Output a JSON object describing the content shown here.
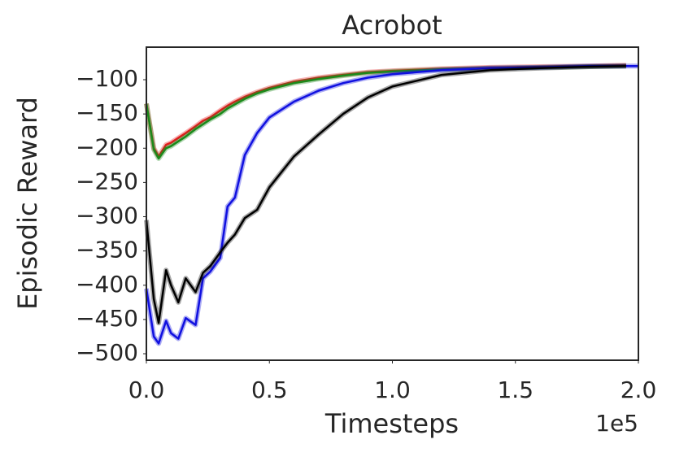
{
  "chart_data": {
    "type": "line",
    "title": "Acrobot",
    "x_label": "Timesteps",
    "y_label": "Episodic Reward",
    "x_offset_label": "1e5",
    "x": [
      0,
      0.03,
      0.05,
      0.08,
      0.1,
      0.13,
      0.16,
      0.2,
      0.23,
      0.26,
      0.3,
      0.33,
      0.36,
      0.4,
      0.45,
      0.5,
      0.6,
      0.7,
      0.8,
      0.9,
      1.0,
      1.2,
      1.4,
      1.6,
      1.8,
      1.95,
      2.0
    ],
    "series": [
      {
        "color": "#e41a1c",
        "values": [
          -135,
          -200,
          -212,
          -195,
          -192,
          -185,
          -178,
          -168,
          -160,
          -155,
          -145,
          -138,
          -132,
          -125,
          -118,
          -112,
          -103,
          -97,
          -93,
          -89,
          -87,
          -84,
          -82,
          -81,
          -80,
          -79,
          null
        ]
      },
      {
        "color": "#1a8a1a",
        "values": [
          -135,
          -202,
          -215,
          -200,
          -197,
          -190,
          -183,
          -172,
          -165,
          -158,
          -150,
          -142,
          -136,
          -128,
          -120,
          -114,
          -105,
          -99,
          -94,
          -90,
          -88,
          -85,
          -83,
          -82,
          -81,
          -80,
          null
        ]
      },
      {
        "color": "#1010e0",
        "values": [
          -405,
          -475,
          -485,
          -452,
          -470,
          -478,
          -448,
          -458,
          -390,
          -380,
          -360,
          -285,
          -272,
          -210,
          -178,
          -155,
          -132,
          -116,
          -105,
          -97,
          -92,
          -86,
          -83,
          -82,
          -80,
          -80,
          -80
        ]
      },
      {
        "color": "#000000",
        "values": [
          -305,
          -420,
          -455,
          -378,
          -400,
          -425,
          -390,
          -410,
          -382,
          -372,
          -352,
          -338,
          -326,
          -302,
          -290,
          -257,
          -212,
          -180,
          -150,
          -126,
          -110,
          -93,
          -86,
          -83,
          -81,
          -80,
          null
        ]
      }
    ],
    "xlim": [
      0,
      2.0
    ],
    "xticks": [
      {
        "value": 0,
        "label": "0.0"
      },
      {
        "value": 0.5,
        "label": "0.5"
      },
      {
        "value": 1.0,
        "label": "1.0"
      },
      {
        "value": 1.5,
        "label": "1.5"
      },
      {
        "value": 2.0,
        "label": "2.0"
      }
    ],
    "ylim": [
      -509.5,
      -52.5
    ],
    "yticks": [
      {
        "value": -500,
        "label": "−500"
      },
      {
        "value": -450,
        "label": "−450"
      },
      {
        "value": -400,
        "label": "−400"
      },
      {
        "value": -350,
        "label": "−350"
      },
      {
        "value": -300,
        "label": "−300"
      },
      {
        "value": -250,
        "label": "−250"
      },
      {
        "value": -200,
        "label": "−200"
      },
      {
        "value": -150,
        "label": "−150"
      },
      {
        "value": -100,
        "label": "−100"
      }
    ],
    "grid": false
  }
}
